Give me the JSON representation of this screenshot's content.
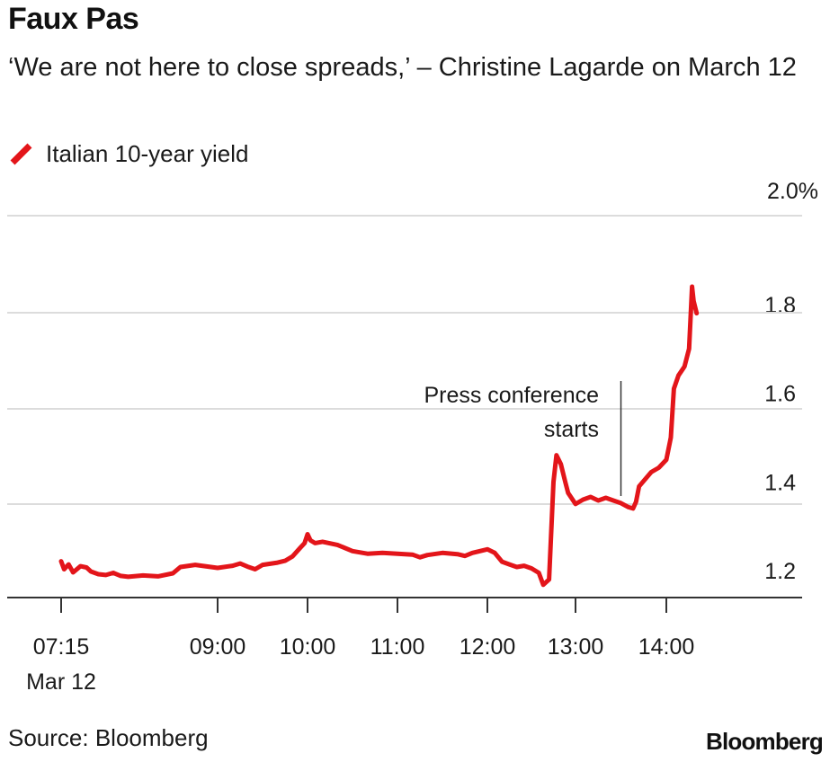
{
  "header": {
    "title": "Faux Pas",
    "subtitle": "‘We are not here to close spreads,’ – Christine Lagarde on March 12"
  },
  "legend": {
    "label": "Italian 10-year yield",
    "color": "#e3151a"
  },
  "footer": {
    "source": "Source: Bloomberg",
    "brand": "Bloomberg"
  },
  "chart_data": {
    "type": "line",
    "title": "Faux Pas",
    "subtitle": "‘We are not here to close spreads,’ – Christine Lagarde on March 12",
    "xlabel": "",
    "ylabel": "",
    "ylim": [
      1.14,
      2.0
    ],
    "grid": true,
    "y_ticks": [
      {
        "value": 2.0,
        "label": "2.0%"
      },
      {
        "value": 1.8,
        "label": "1.8"
      },
      {
        "value": 1.6,
        "label": "1.6"
      },
      {
        "value": 1.4,
        "label": "1.4"
      },
      {
        "value": 1.2,
        "label": "1.2"
      }
    ],
    "x_ticks": [
      {
        "value": "07:15",
        "label": "07:15",
        "sublabel": "Mar 12"
      },
      {
        "value": "09:00",
        "label": "09:00"
      },
      {
        "value": "10:00",
        "label": "10:00"
      },
      {
        "value": "11:00",
        "label": "11:00"
      },
      {
        "value": "12:00",
        "label": "12:00"
      },
      {
        "value": "13:00",
        "label": "13:00"
      },
      {
        "value": "14:00",
        "label": "14:00"
      }
    ],
    "annotation": {
      "text": [
        "Press conference",
        "starts"
      ],
      "x": "13:30"
    },
    "series": [
      {
        "name": "Italian 10-year yield",
        "color": "#e3151a",
        "points": [
          [
            "07:15",
            1.221
          ],
          [
            "07:17",
            1.203
          ],
          [
            "07:20",
            1.214
          ],
          [
            "07:23",
            1.196
          ],
          [
            "07:28",
            1.21
          ],
          [
            "07:32",
            1.207
          ],
          [
            "07:35",
            1.198
          ],
          [
            "07:40",
            1.192
          ],
          [
            "07:45",
            1.19
          ],
          [
            "07:50",
            1.195
          ],
          [
            "07:55",
            1.188
          ],
          [
            "08:00",
            1.186
          ],
          [
            "08:10",
            1.189
          ],
          [
            "08:20",
            1.187
          ],
          [
            "08:30",
            1.194
          ],
          [
            "08:35",
            1.208
          ],
          [
            "08:45",
            1.213
          ],
          [
            "09:00",
            1.206
          ],
          [
            "09:10",
            1.211
          ],
          [
            "09:15",
            1.216
          ],
          [
            "09:20",
            1.209
          ],
          [
            "09:25",
            1.203
          ],
          [
            "09:30",
            1.213
          ],
          [
            "09:40",
            1.218
          ],
          [
            "09:45",
            1.222
          ],
          [
            "09:50",
            1.232
          ],
          [
            "09:55",
            1.251
          ],
          [
            "09:58",
            1.262
          ],
          [
            "10:00",
            1.282
          ],
          [
            "10:02",
            1.268
          ],
          [
            "10:05",
            1.262
          ],
          [
            "10:10",
            1.265
          ],
          [
            "10:20",
            1.258
          ],
          [
            "10:30",
            1.244
          ],
          [
            "10:40",
            1.238
          ],
          [
            "10:50",
            1.24
          ],
          [
            "11:00",
            1.238
          ],
          [
            "11:10",
            1.236
          ],
          [
            "11:15",
            1.23
          ],
          [
            "11:20",
            1.235
          ],
          [
            "11:30",
            1.24
          ],
          [
            "11:40",
            1.237
          ],
          [
            "11:45",
            1.233
          ],
          [
            "11:50",
            1.24
          ],
          [
            "11:55",
            1.244
          ],
          [
            "12:00",
            1.248
          ],
          [
            "12:05",
            1.24
          ],
          [
            "12:10",
            1.22
          ],
          [
            "12:15",
            1.214
          ],
          [
            "12:20",
            1.208
          ],
          [
            "12:25",
            1.211
          ],
          [
            "12:30",
            1.205
          ],
          [
            "12:35",
            1.195
          ],
          [
            "12:38",
            1.168
          ],
          [
            "12:42",
            1.18
          ],
          [
            "12:45",
            1.4
          ],
          [
            "12:47",
            1.46
          ],
          [
            "12:50",
            1.44
          ],
          [
            "12:53",
            1.4
          ],
          [
            "12:55",
            1.375
          ],
          [
            "13:00",
            1.35
          ],
          [
            "13:05",
            1.36
          ],
          [
            "13:10",
            1.366
          ],
          [
            "13:15",
            1.358
          ],
          [
            "13:20",
            1.364
          ],
          [
            "13:25",
            1.358
          ],
          [
            "13:30",
            1.352
          ],
          [
            "13:35",
            1.343
          ],
          [
            "13:38",
            1.34
          ],
          [
            "13:40",
            1.355
          ],
          [
            "13:42",
            1.39
          ],
          [
            "13:45",
            1.402
          ],
          [
            "13:50",
            1.422
          ],
          [
            "13:55",
            1.432
          ],
          [
            "14:00",
            1.45
          ],
          [
            "14:03",
            1.5
          ],
          [
            "14:05",
            1.61
          ],
          [
            "14:08",
            1.64
          ],
          [
            "14:12",
            1.66
          ],
          [
            "14:15",
            1.7
          ],
          [
            "14:17",
            1.84
          ],
          [
            "14:18",
            1.808
          ],
          [
            "14:20",
            1.78
          ]
        ]
      }
    ]
  }
}
